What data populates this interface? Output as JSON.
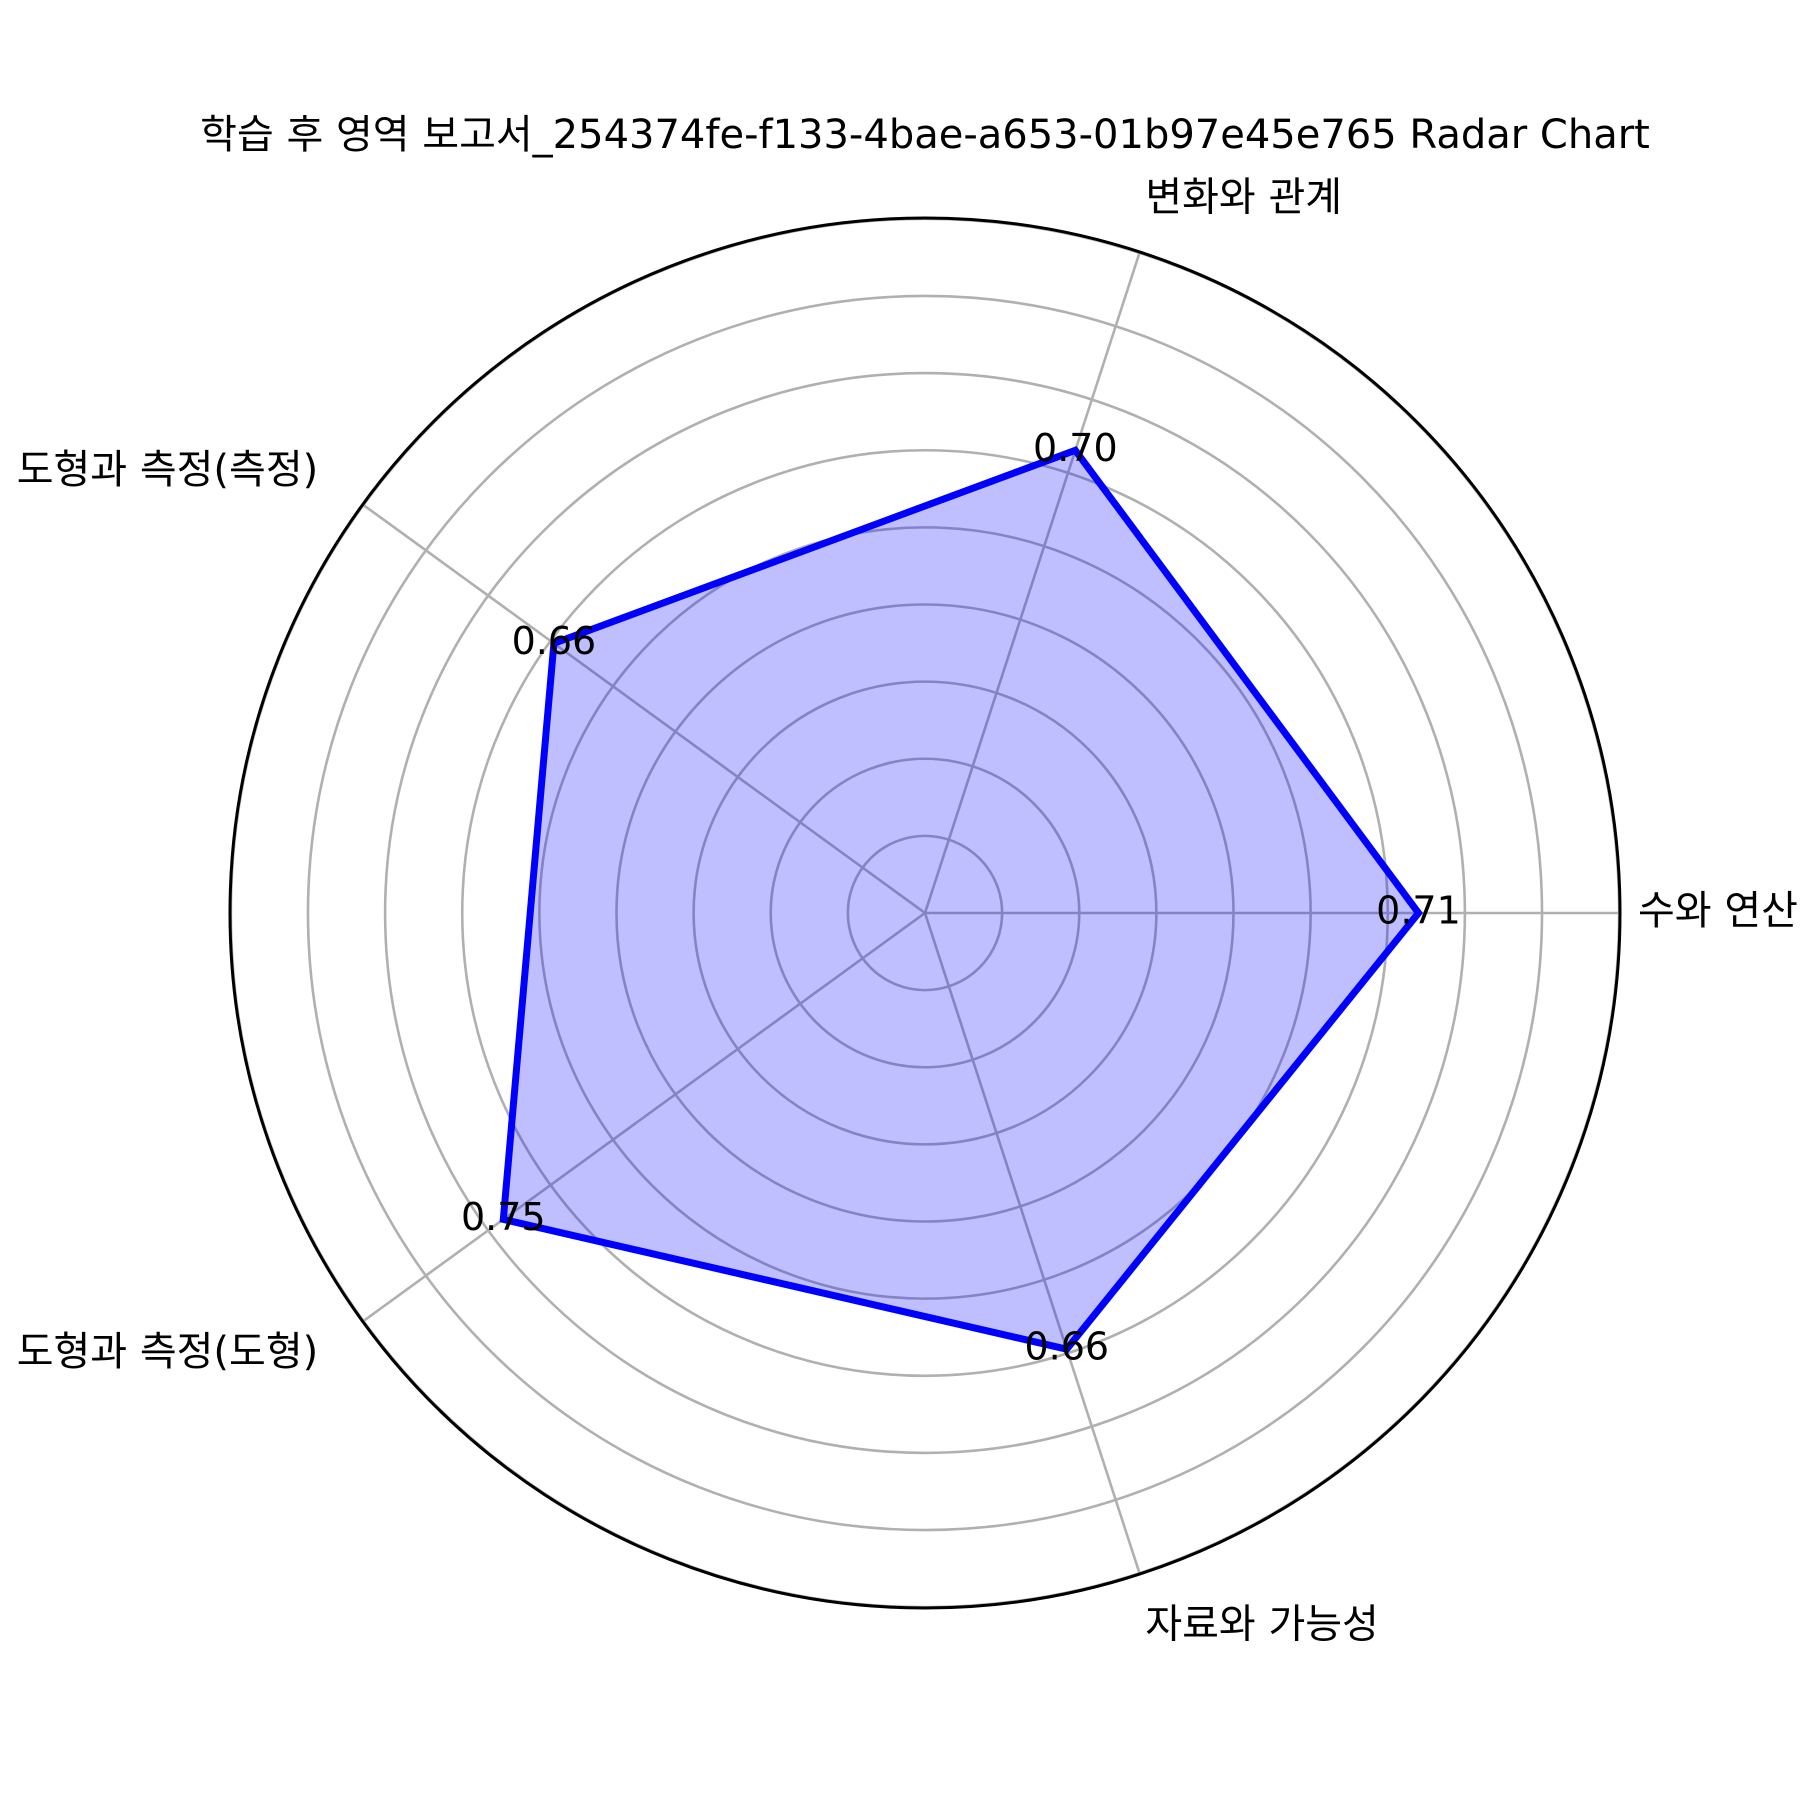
{
  "chart_data": {
    "type": "radar",
    "title": "학습 후 영역 보고서_254374fe-f133-4bae-a653-01b97e45e765 Radar Chart",
    "categories": [
      "수와 연산",
      "변화와 관계",
      "도형과 측정(측정)",
      "도형과 측정(도형)",
      "자료와 가능성"
    ],
    "series": [
      {
        "values": [
          0.71,
          0.7,
          0.66,
          0.75,
          0.66
        ],
        "value_labels": [
          "0.71",
          "0.70",
          "0.66",
          "0.75",
          "0.66"
        ],
        "line_color": "#0000ff",
        "fill_color": "#0000ff",
        "fill_opacity": 0.25
      }
    ],
    "rlim": [
      0,
      1.0
    ],
    "grid": true,
    "ring_count": 9,
    "start_angle_deg": 0,
    "direction": "counterclockwise"
  }
}
